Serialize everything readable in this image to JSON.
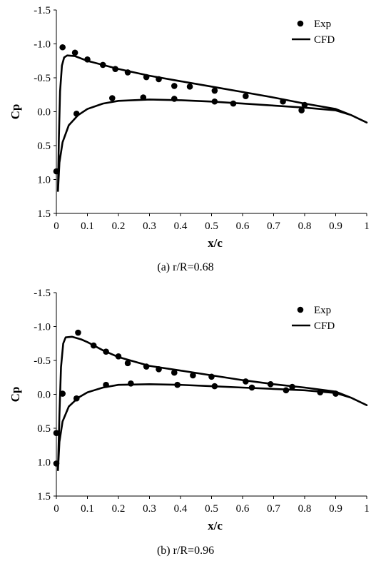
{
  "chart_data": [
    {
      "type": "scatter",
      "caption": "(a) r/R=0.68",
      "xlabel": "x/c",
      "ylabel": "Cp",
      "xlim": [
        0,
        1
      ],
      "ylim": [
        1.5,
        -1.5
      ],
      "y_inverted": true,
      "grid": false,
      "legend_position": "top-right",
      "xticks": [
        "0",
        "0.1",
        "0.2",
        "0.3",
        "0.4",
        "0.5",
        "0.6",
        "0.7",
        "0.8",
        "0.9",
        "1"
      ],
      "yticks": [
        "-1.5",
        "-1.0",
        "-0.5",
        "0.0",
        "0.5",
        "1.0",
        "1.5"
      ],
      "series": [
        {
          "name": "Exp",
          "kind": "markers",
          "points": [
            [
              0.0,
              0.88
            ],
            [
              0.02,
              -0.95
            ],
            [
              0.06,
              -0.87
            ],
            [
              0.1,
              -0.77
            ],
            [
              0.15,
              -0.69
            ],
            [
              0.19,
              -0.63
            ],
            [
              0.23,
              -0.58
            ],
            [
              0.29,
              -0.51
            ],
            [
              0.33,
              -0.48
            ],
            [
              0.38,
              -0.38
            ],
            [
              0.43,
              -0.37
            ],
            [
              0.51,
              -0.31
            ],
            [
              0.61,
              -0.23
            ],
            [
              0.73,
              -0.15
            ],
            [
              0.8,
              -0.1
            ],
            [
              0.065,
              0.03
            ],
            [
              0.18,
              -0.2
            ],
            [
              0.28,
              -0.21
            ],
            [
              0.38,
              -0.19
            ],
            [
              0.51,
              -0.15
            ],
            [
              0.57,
              -0.12
            ],
            [
              0.79,
              -0.02
            ]
          ]
        },
        {
          "name": "CFD",
          "kind": "line",
          "upper": [
            [
              0.005,
              1.18
            ],
            [
              0.008,
              0.4
            ],
            [
              0.012,
              -0.3
            ],
            [
              0.018,
              -0.68
            ],
            [
              0.025,
              -0.8
            ],
            [
              0.035,
              -0.83
            ],
            [
              0.06,
              -0.82
            ],
            [
              0.1,
              -0.75
            ],
            [
              0.2,
              -0.63
            ],
            [
              0.3,
              -0.53
            ],
            [
              0.4,
              -0.45
            ],
            [
              0.5,
              -0.37
            ],
            [
              0.6,
              -0.29
            ],
            [
              0.7,
              -0.21
            ],
            [
              0.8,
              -0.12
            ],
            [
              0.9,
              -0.04
            ],
            [
              0.95,
              0.05
            ],
            [
              1.0,
              0.16
            ]
          ],
          "lower": [
            [
              0.005,
              1.18
            ],
            [
              0.01,
              0.75
            ],
            [
              0.02,
              0.45
            ],
            [
              0.04,
              0.2
            ],
            [
              0.07,
              0.05
            ],
            [
              0.1,
              -0.04
            ],
            [
              0.15,
              -0.12
            ],
            [
              0.2,
              -0.16
            ],
            [
              0.3,
              -0.18
            ],
            [
              0.4,
              -0.17
            ],
            [
              0.5,
              -0.15
            ],
            [
              0.6,
              -0.12
            ],
            [
              0.7,
              -0.09
            ],
            [
              0.8,
              -0.06
            ],
            [
              0.9,
              -0.02
            ],
            [
              0.95,
              0.05
            ],
            [
              1.0,
              0.16
            ]
          ]
        }
      ]
    },
    {
      "type": "scatter",
      "caption": "(b) r/R=0.96",
      "xlabel": "x/c",
      "ylabel": "Cp",
      "xlim": [
        0,
        1
      ],
      "ylim": [
        1.5,
        -1.5
      ],
      "y_inverted": true,
      "grid": false,
      "legend_position": "top-right",
      "xticks": [
        "0",
        "0.1",
        "0.2",
        "0.3",
        "0.4",
        "0.5",
        "0.6",
        "0.7",
        "0.8",
        "0.9",
        "1"
      ],
      "yticks": [
        "-1.5",
        "-1.0",
        "-0.5",
        "0.0",
        "0.5",
        "1.0",
        "1.5"
      ],
      "series": [
        {
          "name": "Exp",
          "kind": "markers",
          "points": [
            [
              0.0,
              0.57
            ],
            [
              0.0,
              1.02
            ],
            [
              0.02,
              -0.01
            ],
            [
              0.065,
              0.06
            ],
            [
              0.07,
              -0.91
            ],
            [
              0.12,
              -0.72
            ],
            [
              0.16,
              -0.63
            ],
            [
              0.2,
              -0.56
            ],
            [
              0.23,
              -0.46
            ],
            [
              0.29,
              -0.41
            ],
            [
              0.33,
              -0.37
            ],
            [
              0.38,
              -0.32
            ],
            [
              0.44,
              -0.28
            ],
            [
              0.5,
              -0.26
            ],
            [
              0.61,
              -0.19
            ],
            [
              0.69,
              -0.15
            ],
            [
              0.76,
              -0.11
            ],
            [
              0.85,
              -0.03
            ],
            [
              0.9,
              -0.01
            ],
            [
              0.16,
              -0.14
            ],
            [
              0.24,
              -0.16
            ],
            [
              0.39,
              -0.14
            ],
            [
              0.51,
              -0.12
            ],
            [
              0.63,
              -0.1
            ],
            [
              0.74,
              -0.06
            ]
          ]
        },
        {
          "name": "CFD",
          "kind": "line",
          "upper": [
            [
              0.005,
              1.13
            ],
            [
              0.01,
              0.3
            ],
            [
              0.015,
              -0.4
            ],
            [
              0.022,
              -0.75
            ],
            [
              0.03,
              -0.84
            ],
            [
              0.05,
              -0.85
            ],
            [
              0.08,
              -0.81
            ],
            [
              0.1,
              -0.77
            ],
            [
              0.15,
              -0.65
            ],
            [
              0.2,
              -0.55
            ],
            [
              0.3,
              -0.42
            ],
            [
              0.4,
              -0.35
            ],
            [
              0.5,
              -0.28
            ],
            [
              0.6,
              -0.21
            ],
            [
              0.7,
              -0.15
            ],
            [
              0.8,
              -0.1
            ],
            [
              0.9,
              -0.04
            ],
            [
              0.95,
              0.05
            ],
            [
              1.0,
              0.16
            ]
          ],
          "lower": [
            [
              0.005,
              1.13
            ],
            [
              0.01,
              0.7
            ],
            [
              0.02,
              0.4
            ],
            [
              0.04,
              0.18
            ],
            [
              0.07,
              0.05
            ],
            [
              0.1,
              -0.03
            ],
            [
              0.15,
              -0.1
            ],
            [
              0.2,
              -0.14
            ],
            [
              0.3,
              -0.15
            ],
            [
              0.4,
              -0.14
            ],
            [
              0.5,
              -0.12
            ],
            [
              0.6,
              -0.1
            ],
            [
              0.7,
              -0.08
            ],
            [
              0.8,
              -0.06
            ],
            [
              0.9,
              -0.02
            ],
            [
              0.95,
              0.05
            ],
            [
              1.0,
              0.16
            ]
          ]
        }
      ]
    }
  ]
}
